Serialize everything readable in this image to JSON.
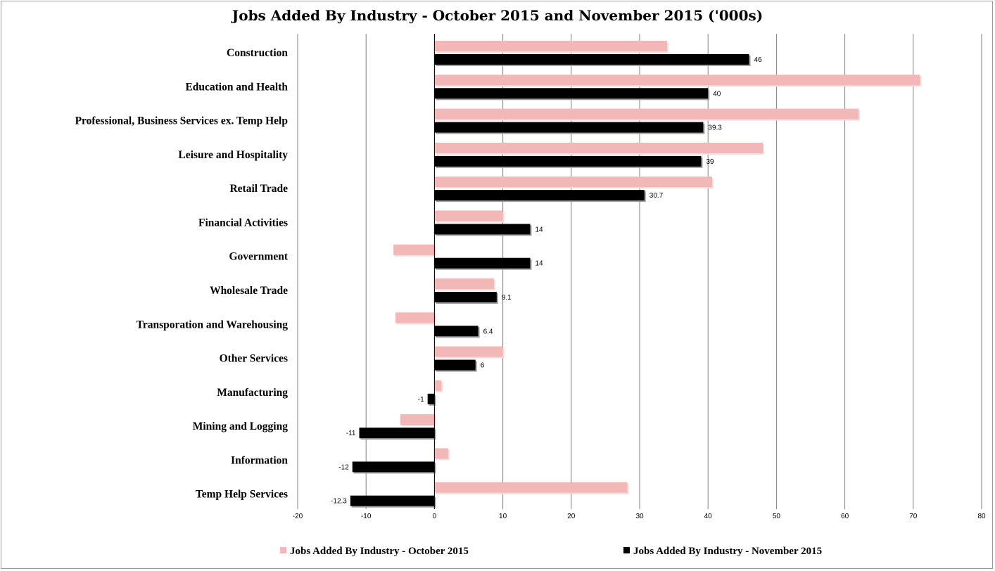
{
  "chart_data": {
    "type": "bar",
    "orientation": "horizontal",
    "title": "Jobs Added By Industry - October 2015 and November 2015 ('000s)",
    "categories": [
      "Construction",
      "Education and Health",
      "Professional, Business Services ex. Temp Help",
      "Leisure and Hospitality",
      "Retail Trade",
      "Financial Activities",
      "Government",
      "Wholesale Trade",
      "Transporation and Warehousing",
      "Other Services",
      "Manufacturing",
      "Mining and Logging",
      "Information",
      "Temp Help Services"
    ],
    "series": [
      {
        "name": "Jobs Added By Industry - October 2015",
        "color": "#f2b8b8",
        "values": [
          34,
          71,
          62,
          48,
          40.6,
          10,
          -6,
          8.7,
          -5.7,
          10,
          1,
          -5,
          2,
          28.2
        ]
      },
      {
        "name": "Jobs Added By Industry - November 2015",
        "color": "#000000",
        "values": [
          46,
          40,
          39.3,
          39,
          30.7,
          14,
          14,
          9.1,
          6.4,
          6,
          -1,
          -11,
          -12,
          -12.3
        ],
        "data_labels": [
          "46",
          "40",
          "39.3",
          "39",
          "30.7",
          "14",
          "14",
          "9.1",
          "6.4",
          "6",
          "-1",
          "-11",
          "-12",
          "-12.3"
        ]
      }
    ],
    "xlim": [
      -20,
      80
    ],
    "xticks": [
      "-20",
      "-10",
      "0",
      "10",
      "20",
      "30",
      "40",
      "50",
      "60",
      "70",
      "80"
    ],
    "grid": true,
    "legend_position": "bottom"
  }
}
